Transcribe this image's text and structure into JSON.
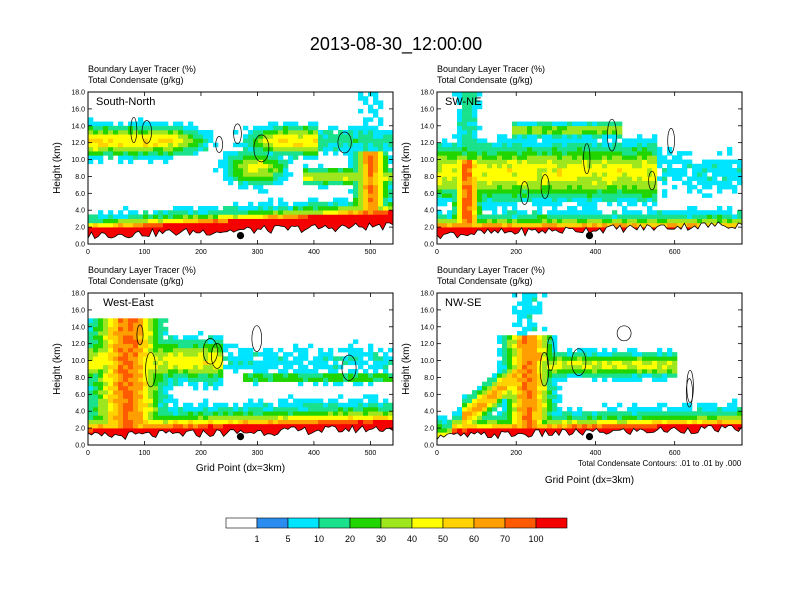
{
  "figure": {
    "title": "2013-08-30_12:00:00",
    "footnote": "Total Condensate Contours: .01 to .01 by .000",
    "colorbar": {
      "colors": [
        "#ffffff",
        "#2b8cf0",
        "#00e5ff",
        "#19e18c",
        "#21d600",
        "#9ee61e",
        "#ffff00",
        "#ffd200",
        "#ff9e00",
        "#ff5a00",
        "#f50000"
      ],
      "labels": [
        "1",
        "5",
        "10",
        "20",
        "30",
        "40",
        "50",
        "60",
        "70",
        "100"
      ]
    }
  },
  "chart_data": [
    {
      "type": "heatmap",
      "panel": "South-North",
      "header_line1": "Boundary Layer Tracer   (%)",
      "header_line2": "Total Condensate   (g/kg)",
      "xlabel": "",
      "ylabel": "Height (km)",
      "xlim": [
        0,
        540
      ],
      "ylim": [
        0,
        18
      ],
      "xticks": [
        0,
        100,
        200,
        300,
        400,
        500
      ],
      "yticks": [
        "0.0",
        "2.0",
        "4.0",
        "6.0",
        "8.0",
        "10.0",
        "12.0",
        "14.0",
        "16.0",
        "18.0"
      ],
      "marker": {
        "x": 270,
        "y": 1.0
      },
      "terrain_max_km": 2.2
    },
    {
      "type": "heatmap",
      "panel": "SW-NE",
      "header_line1": "Boundary Layer Tracer   (%)",
      "header_line2": "Total Condensate   (g/kg)",
      "xlabel": "",
      "ylabel": "Height (km)",
      "xlim": [
        0,
        770
      ],
      "ylim": [
        0,
        18
      ],
      "xticks": [
        0,
        200,
        400,
        600
      ],
      "yticks": [
        "0.0",
        "2.0",
        "4.0",
        "6.0",
        "8.0",
        "10.0",
        "12.0",
        "14.0",
        "16.0",
        "18.0"
      ],
      "marker": {
        "x": 385,
        "y": 1.0
      },
      "terrain_max_km": 2.4
    },
    {
      "type": "heatmap",
      "panel": "West-East",
      "header_line1": "Boundary Layer Tracer   (%)",
      "header_line2": "Total Condensate   (g/kg)",
      "xlabel": "Grid Point (dx=3km)",
      "ylabel": "Height (km)",
      "xlim": [
        0,
        540
      ],
      "ylim": [
        0,
        18
      ],
      "xticks": [
        0,
        100,
        200,
        300,
        400,
        500
      ],
      "yticks": [
        "0.0",
        "2.0",
        "4.0",
        "6.0",
        "8.0",
        "10.0",
        "12.0",
        "14.0",
        "16.0",
        "18.0"
      ],
      "marker": {
        "x": 270,
        "y": 1.0
      },
      "terrain_max_km": 2.0
    },
    {
      "type": "heatmap",
      "panel": "NW-SE",
      "header_line1": "Boundary Layer Tracer   (%)",
      "header_line2": "Total Condensate   (g/kg)",
      "xlabel": "Grid Point (dx=3km)",
      "ylabel": "Height (km)",
      "xlim": [
        0,
        770
      ],
      "ylim": [
        0,
        18
      ],
      "xticks": [
        0,
        200,
        400,
        600
      ],
      "yticks": [
        "0.0",
        "2.0",
        "4.0",
        "6.0",
        "8.0",
        "10.0",
        "12.0",
        "14.0",
        "16.0",
        "18.0"
      ],
      "marker": {
        "x": 385,
        "y": 1.0
      },
      "terrain_max_km": 2.0
    }
  ]
}
